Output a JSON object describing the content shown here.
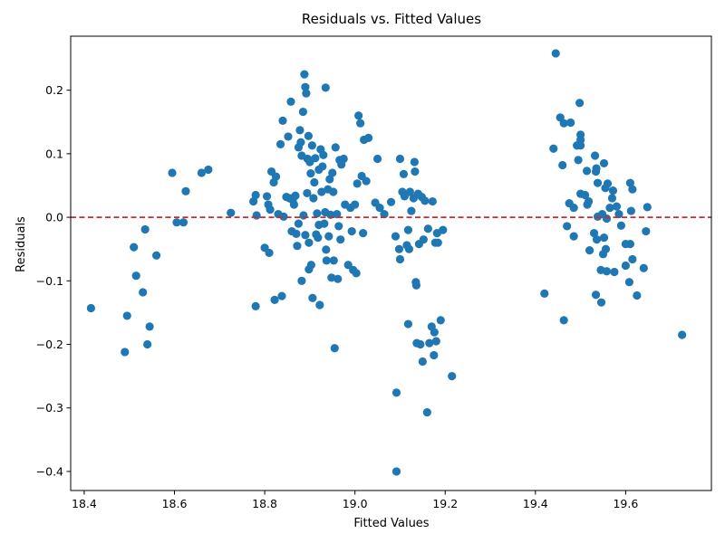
{
  "chart_data": {
    "type": "scatter",
    "title": "Residuals vs. Fitted Values",
    "xlabel": "Fitted Values",
    "ylabel": "Residuals",
    "xlim": [
      18.37,
      19.79
    ],
    "ylim": [
      -0.43,
      0.285
    ],
    "xticks": [
      18.4,
      18.6,
      18.8,
      19.0,
      19.2,
      19.4,
      19.6
    ],
    "xtick_labels": [
      "18.4",
      "18.6",
      "18.8",
      "19.0",
      "19.2",
      "19.4",
      "19.6"
    ],
    "yticks": [
      -0.4,
      -0.3,
      -0.2,
      -0.1,
      0.0,
      0.1,
      0.2
    ],
    "ytick_labels": [
      "−0.4",
      "−0.3",
      "−0.2",
      "−0.1",
      "0.0",
      "0.1",
      "0.2"
    ],
    "grid": false,
    "point_color": "#1f77b4",
    "reference_line": {
      "y": 0,
      "color": "#d62728",
      "style": "dashed"
    },
    "points": [
      [
        18.415,
        -0.143
      ],
      [
        18.49,
        -0.212
      ],
      [
        18.495,
        -0.155
      ],
      [
        18.51,
        -0.047
      ],
      [
        18.515,
        -0.092
      ],
      [
        18.53,
        -0.118
      ],
      [
        18.535,
        -0.019
      ],
      [
        18.54,
        -0.2
      ],
      [
        18.545,
        -0.172
      ],
      [
        18.56,
        -0.06
      ],
      [
        18.595,
        0.07
      ],
      [
        18.605,
        -0.008
      ],
      [
        18.62,
        -0.008
      ],
      [
        18.625,
        0.041
      ],
      [
        18.66,
        0.07
      ],
      [
        18.675,
        0.075
      ],
      [
        18.725,
        0.007
      ],
      [
        18.775,
        0.025
      ],
      [
        18.78,
        0.035
      ],
      [
        18.782,
        0.003
      ],
      [
        18.78,
        -0.14
      ],
      [
        18.8,
        -0.048
      ],
      [
        18.805,
        0.033
      ],
      [
        18.808,
        0.02
      ],
      [
        18.81,
        -0.056
      ],
      [
        18.812,
        0.012
      ],
      [
        18.815,
        0.072
      ],
      [
        18.82,
        0.055
      ],
      [
        18.822,
        -0.13
      ],
      [
        18.825,
        0.064
      ],
      [
        18.83,
        0.005
      ],
      [
        18.835,
        0.115
      ],
      [
        18.838,
        -0.124
      ],
      [
        18.84,
        0.152
      ],
      [
        18.842,
        0.001
      ],
      [
        18.848,
        0.032
      ],
      [
        18.852,
        0.127
      ],
      [
        18.855,
        0.03
      ],
      [
        18.858,
        0.182
      ],
      [
        18.86,
        -0.022
      ],
      [
        18.862,
        0.027
      ],
      [
        18.865,
        0.02
      ],
      [
        18.868,
        0.034
      ],
      [
        18.87,
        -0.026
      ],
      [
        18.872,
        -0.045
      ],
      [
        18.875,
        0.11
      ],
      [
        18.875,
        -0.01
      ],
      [
        18.878,
        0.137
      ],
      [
        18.88,
        0.118
      ],
      [
        18.882,
        -0.1
      ],
      [
        18.882,
        0.097
      ],
      [
        18.885,
        0.166
      ],
      [
        18.886,
        0.003
      ],
      [
        18.888,
        0.225
      ],
      [
        18.89,
        0.205
      ],
      [
        18.89,
        -0.028
      ],
      [
        18.892,
        0.195
      ],
      [
        18.894,
        0.038
      ],
      [
        18.895,
        0.092
      ],
      [
        18.897,
        0.128
      ],
      [
        18.898,
        -0.04
      ],
      [
        18.898,
        -0.082
      ],
      [
        18.9,
        0.087
      ],
      [
        18.902,
        0.069
      ],
      [
        18.903,
        -0.075
      ],
      [
        18.905,
        0.113
      ],
      [
        18.906,
        -0.127
      ],
      [
        18.908,
        0.03
      ],
      [
        18.91,
        0.055
      ],
      [
        18.912,
        0.093
      ],
      [
        18.914,
        -0.027
      ],
      [
        18.916,
        0.006
      ],
      [
        18.918,
        -0.032
      ],
      [
        18.92,
        0.075
      ],
      [
        18.92,
        -0.012
      ],
      [
        18.922,
        -0.138
      ],
      [
        18.924,
        0.107
      ],
      [
        18.926,
        0.04
      ],
      [
        18.928,
        0.08
      ],
      [
        18.93,
        0.098
      ],
      [
        18.932,
        -0.01
      ],
      [
        18.934,
        0.008
      ],
      [
        18.935,
        0.204
      ],
      [
        18.936,
        -0.051
      ],
      [
        18.937,
        -0.068
      ],
      [
        18.94,
        0.044
      ],
      [
        18.942,
        -0.03
      ],
      [
        18.944,
        0.06
      ],
      [
        18.946,
        0.004
      ],
      [
        18.948,
        -0.095
      ],
      [
        18.95,
        0.07
      ],
      [
        18.952,
        0.04
      ],
      [
        18.953,
        -0.068
      ],
      [
        18.955,
        -0.206
      ],
      [
        18.957,
        0.11
      ],
      [
        18.96,
        0.005
      ],
      [
        18.962,
        -0.097
      ],
      [
        18.964,
        -0.014
      ],
      [
        18.966,
        0.09
      ],
      [
        18.968,
        -0.035
      ],
      [
        18.97,
        0.083
      ],
      [
        18.975,
        0.092
      ],
      [
        18.978,
        0.02
      ],
      [
        18.985,
        -0.075
      ],
      [
        18.99,
        0.015
      ],
      [
        18.993,
        -0.022
      ],
      [
        18.996,
        -0.083
      ],
      [
        19.0,
        0.02
      ],
      [
        19.003,
        -0.088
      ],
      [
        19.005,
        0.053
      ],
      [
        19.008,
        0.16
      ],
      [
        19.012,
        0.148
      ],
      [
        19.015,
        0.065
      ],
      [
        19.018,
        -0.025
      ],
      [
        19.02,
        0.122
      ],
      [
        19.025,
        0.057
      ],
      [
        19.03,
        0.125
      ],
      [
        19.045,
        0.023
      ],
      [
        19.05,
        0.092
      ],
      [
        19.055,
        0.015
      ],
      [
        19.065,
        0.005
      ],
      [
        19.08,
        0.024
      ],
      [
        19.09,
        -0.03
      ],
      [
        19.092,
        -0.276
      ],
      [
        19.092,
        -0.4
      ],
      [
        19.098,
        -0.05
      ],
      [
        19.1,
        0.092
      ],
      [
        19.1,
        -0.066
      ],
      [
        19.105,
        0.04
      ],
      [
        19.108,
        0.068
      ],
      [
        19.11,
        0.033
      ],
      [
        19.115,
        -0.044
      ],
      [
        19.118,
        -0.168
      ],
      [
        19.118,
        -0.02
      ],
      [
        19.12,
        -0.05
      ],
      [
        19.122,
        0.04
      ],
      [
        19.125,
        0.01
      ],
      [
        19.13,
        0.03
      ],
      [
        19.132,
        0.087
      ],
      [
        19.133,
        0.072
      ],
      [
        19.135,
        -0.102
      ],
      [
        19.136,
        -0.107
      ],
      [
        19.137,
        -0.198
      ],
      [
        19.14,
        0.037
      ],
      [
        19.142,
        -0.042
      ],
      [
        19.145,
        -0.2
      ],
      [
        19.148,
        0.032
      ],
      [
        19.15,
        -0.227
      ],
      [
        19.152,
        -0.035
      ],
      [
        19.155,
        0.026
      ],
      [
        19.16,
        -0.307
      ],
      [
        19.162,
        -0.018
      ],
      [
        19.165,
        -0.198
      ],
      [
        19.17,
        -0.172
      ],
      [
        19.172,
        0.025
      ],
      [
        19.175,
        -0.217
      ],
      [
        19.176,
        -0.181
      ],
      [
        19.178,
        -0.04
      ],
      [
        19.18,
        -0.195
      ],
      [
        19.182,
        -0.025
      ],
      [
        19.184,
        -0.04
      ],
      [
        19.19,
        -0.162
      ],
      [
        19.195,
        -0.02
      ],
      [
        19.215,
        -0.25
      ],
      [
        19.42,
        -0.12
      ],
      [
        19.44,
        0.108
      ],
      [
        19.445,
        0.258
      ],
      [
        19.455,
        0.157
      ],
      [
        19.46,
        0.082
      ],
      [
        19.463,
        0.148
      ],
      [
        19.463,
        -0.162
      ],
      [
        19.47,
        -0.014
      ],
      [
        19.475,
        0.022
      ],
      [
        19.478,
        0.149
      ],
      [
        19.485,
        -0.03
      ],
      [
        19.485,
        0.015
      ],
      [
        19.492,
        0.113
      ],
      [
        19.495,
        0.09
      ],
      [
        19.498,
        0.18
      ],
      [
        19.5,
        0.037
      ],
      [
        19.5,
        0.13
      ],
      [
        19.5,
        0.122
      ],
      [
        19.5,
        0.113
      ],
      [
        19.51,
        0.035
      ],
      [
        19.514,
        0.073
      ],
      [
        19.515,
        0.02
      ],
      [
        19.518,
        0.025
      ],
      [
        19.52,
        -0.052
      ],
      [
        19.53,
        -0.025
      ],
      [
        19.532,
        0.097
      ],
      [
        19.534,
        0.072
      ],
      [
        19.534,
        -0.122
      ],
      [
        19.535,
        0.077
      ],
      [
        19.536,
        -0.035
      ],
      [
        19.538,
        0.054
      ],
      [
        19.538,
        0.001
      ],
      [
        19.545,
        -0.083
      ],
      [
        19.546,
        -0.134
      ],
      [
        19.548,
        0.005
      ],
      [
        19.55,
        -0.058
      ],
      [
        19.552,
        0.085
      ],
      [
        19.552,
        -0.032
      ],
      [
        19.555,
        0.046
      ],
      [
        19.556,
        -0.05
      ],
      [
        19.558,
        -0.085
      ],
      [
        19.558,
        -0.002
      ],
      [
        19.56,
        0.053
      ],
      [
        19.565,
        0.015
      ],
      [
        19.57,
        0.03
      ],
      [
        19.572,
        0.042
      ],
      [
        19.575,
        -0.086
      ],
      [
        19.58,
        0.017
      ],
      [
        19.585,
        0.005
      ],
      [
        19.59,
        -0.013
      ],
      [
        19.6,
        -0.042
      ],
      [
        19.6,
        -0.076
      ],
      [
        19.608,
        -0.102
      ],
      [
        19.61,
        0.054
      ],
      [
        19.61,
        -0.042
      ],
      [
        19.612,
        0.01
      ],
      [
        19.615,
        0.044
      ],
      [
        19.615,
        -0.066
      ],
      [
        19.625,
        -0.123
      ],
      [
        19.64,
        -0.08
      ],
      [
        19.645,
        -0.022
      ],
      [
        19.648,
        0.016
      ],
      [
        19.725,
        -0.185
      ]
    ]
  }
}
